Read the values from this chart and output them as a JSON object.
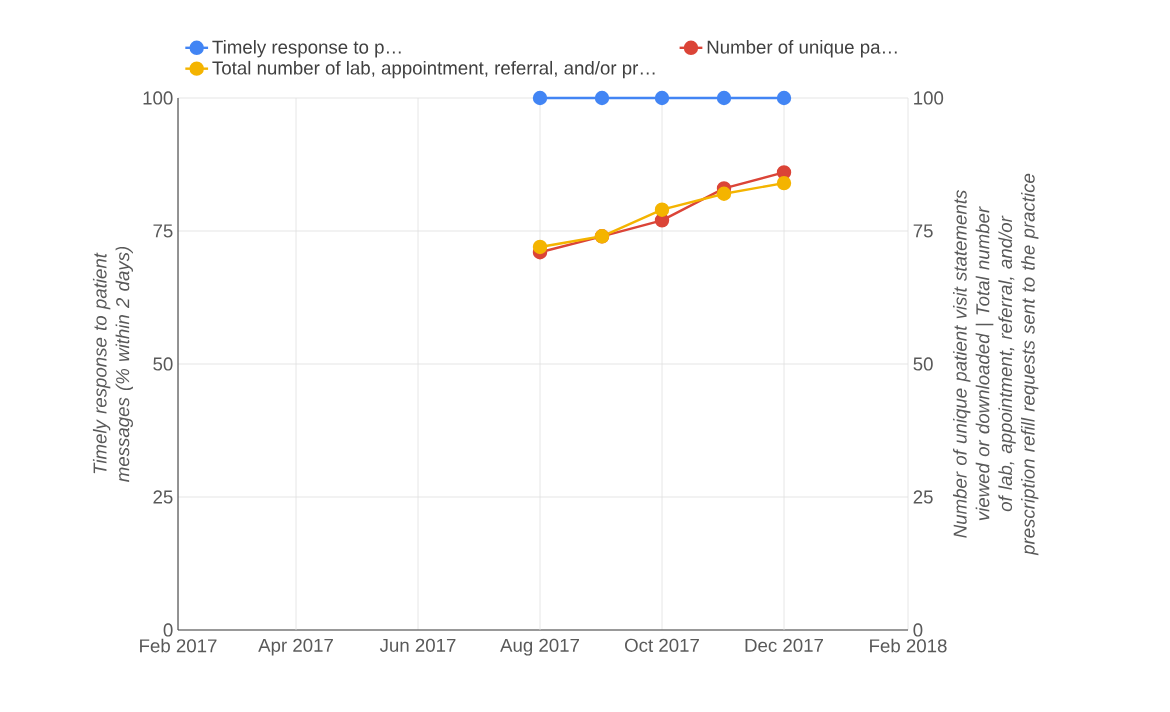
{
  "chart_data": {
    "type": "line",
    "ylabel": "Timely response to patient messages (% within 2 days)",
    "y2label": "Number of unique patient visit statements viewed or downloaded | Total number of lab, appointment, referral, and/or prescription refill requests sent to the practice",
    "xlim": [
      "2017-02",
      "2018-02"
    ],
    "xticks": [
      {
        "value": "2017-02",
        "label": "Feb 2017"
      },
      {
        "value": "2017-04",
        "label": "Apr 2017"
      },
      {
        "value": "2017-06",
        "label": "Jun 2017"
      },
      {
        "value": "2017-08",
        "label": "Aug 2017"
      },
      {
        "value": "2017-10",
        "label": "Oct 2017"
      },
      {
        "value": "2017-12",
        "label": "Dec 2017"
      },
      {
        "value": "2018-02",
        "label": "Feb 2018"
      }
    ],
    "ylim": [
      0,
      100
    ],
    "yticks": [
      0,
      25,
      50,
      75,
      100
    ],
    "y2lim": [
      0,
      100
    ],
    "y2ticks": [
      0,
      25,
      50,
      75,
      100
    ],
    "x": [
      "2017-08",
      "2017-09",
      "2017-10",
      "2017-11",
      "2017-12"
    ],
    "series": [
      {
        "name": "Timely response to p…",
        "color": "#4285f4",
        "values": [
          100,
          100,
          100,
          100,
          100
        ]
      },
      {
        "name": "Number of unique pa…",
        "color": "#db4437",
        "axis": "y2",
        "values": [
          71,
          74,
          77,
          83,
          86
        ]
      },
      {
        "name": "Total number of lab, appointment, referral, and/or pr…",
        "color": "#f4b400",
        "axis": "y2",
        "values": [
          72,
          74,
          79,
          82,
          84
        ]
      }
    ],
    "grid": true,
    "legend": "top",
    "marker": "circle",
    "line_style": "solid"
  }
}
